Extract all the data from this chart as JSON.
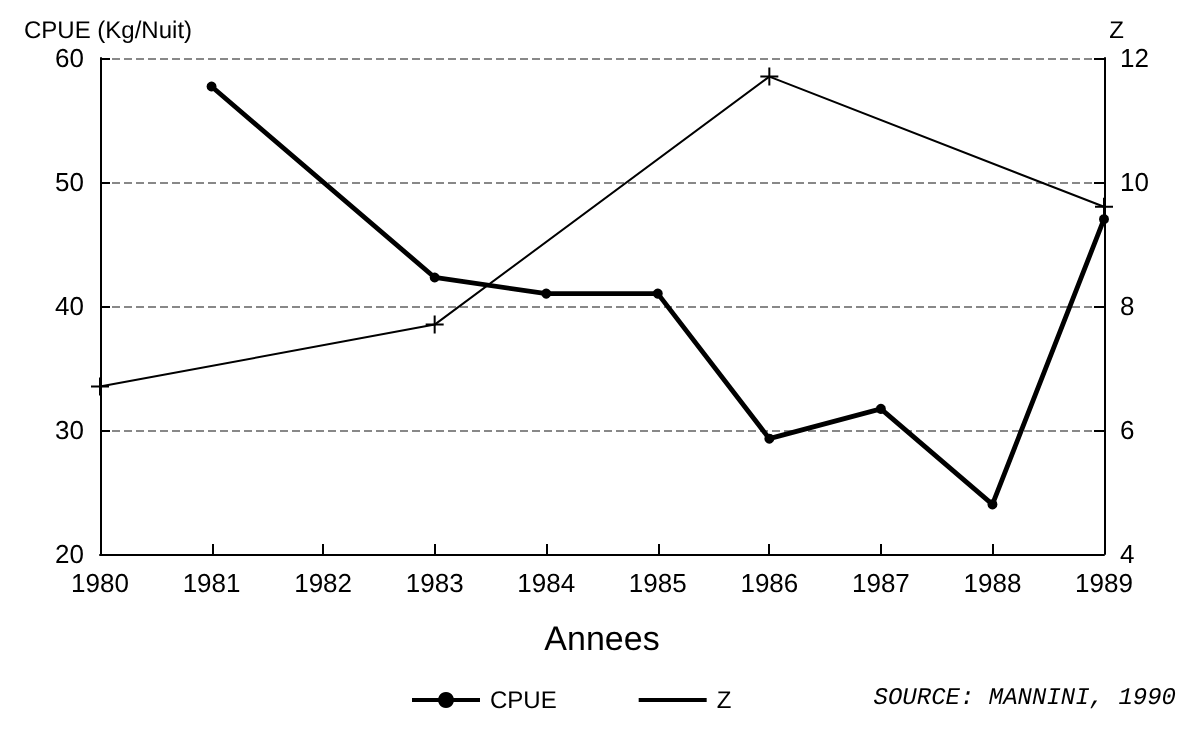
{
  "chart_data": {
    "type": "line",
    "xlabel": "Annees",
    "ylabel": "CPUE (Kg/Nuit)",
    "y2label": "Z",
    "x": [
      1981,
      1983,
      1984,
      1985,
      1986,
      1987,
      1988,
      1989
    ],
    "series": [
      {
        "name": "CPUE",
        "color": "#000000",
        "marker": "circle",
        "values": [
          57.7,
          42.3,
          41,
          41,
          29.3,
          31.7,
          24,
          47
        ]
      },
      {
        "name": "Z",
        "color": "#000000",
        "marker": "cross",
        "axis": "y2",
        "x": [
          1980,
          1983,
          1986,
          1989
        ],
        "values": [
          6.7,
          7.7,
          11.7,
          9.6
        ]
      }
    ],
    "xlim": [
      1980,
      1989
    ],
    "xticks": [
      1980,
      1981,
      1982,
      1983,
      1984,
      1985,
      1986,
      1987,
      1988,
      1989
    ],
    "ylim": [
      20,
      60
    ],
    "yticks": [
      20,
      30,
      40,
      50,
      60
    ],
    "y2lim": [
      4,
      12
    ],
    "y2ticks": [
      4,
      6,
      8,
      10,
      12
    ],
    "grid": "y",
    "legend": "bottom",
    "line_style": "solid",
    "annotations": [
      "SOURCE: MANNINI, 1990"
    ]
  }
}
